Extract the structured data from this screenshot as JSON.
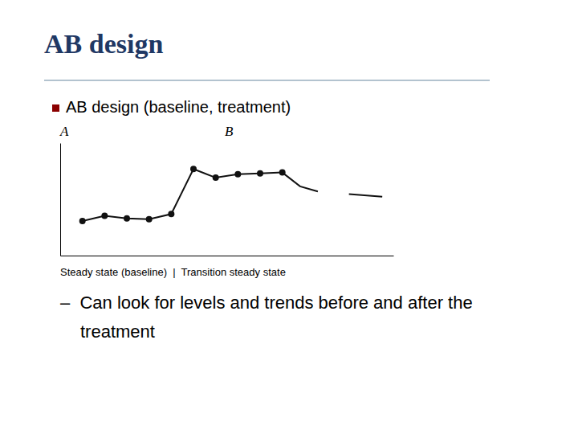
{
  "chart_data": {
    "type": "line",
    "title": "AB design",
    "annotations": [
      "AB design (baseline, treatment)",
      "A",
      "B",
      "Steady state (baseline)  |  Transition steady state",
      "–  Can look for levels and trends before and after the",
      "treatment"
    ],
    "series": [
      {
        "x": [
          1,
          2,
          3,
          4,
          5,
          6,
          7,
          8,
          9,
          10
        ],
        "values": [
          2.0,
          2.3,
          2.15,
          2.1,
          2.4,
          5.0,
          4.5,
          4.7,
          4.75,
          4.8
        ],
        "color": "#111111",
        "marker": "circle"
      },
      {
        "x": [
          10.0,
          10.8,
          11.6
        ],
        "values": [
          4.8,
          4.0,
          3.7
        ],
        "color": "#111111"
      },
      {
        "x": [
          13.0,
          14.5
        ],
        "values": [
          3.55,
          3.4
        ],
        "color": "#111111"
      }
    ],
    "xlim": [
      0,
      15
    ],
    "ylim": [
      0,
      6.5
    ],
    "tick_labels": false
  }
}
